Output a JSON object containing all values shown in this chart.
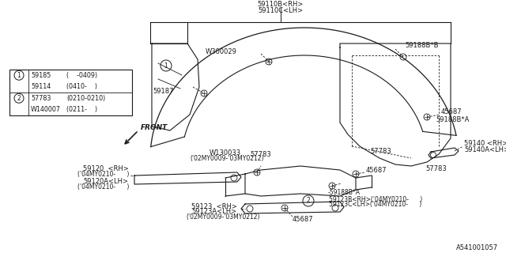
{
  "bg_color": "#ffffff",
  "line_color": "#1a1a1a",
  "diagram_id": "A541001057",
  "fig_width": 6.4,
  "fig_height": 3.2,
  "dpi": 100,
  "legend_entries": [
    [
      "1",
      "59185",
      "(    -0409)"
    ],
    [
      "",
      "59114",
      "(0410-    )"
    ],
    [
      "2",
      "57783",
      "(0210-0210)"
    ],
    [
      "",
      "W140007",
      "(0211-    )"
    ]
  ]
}
